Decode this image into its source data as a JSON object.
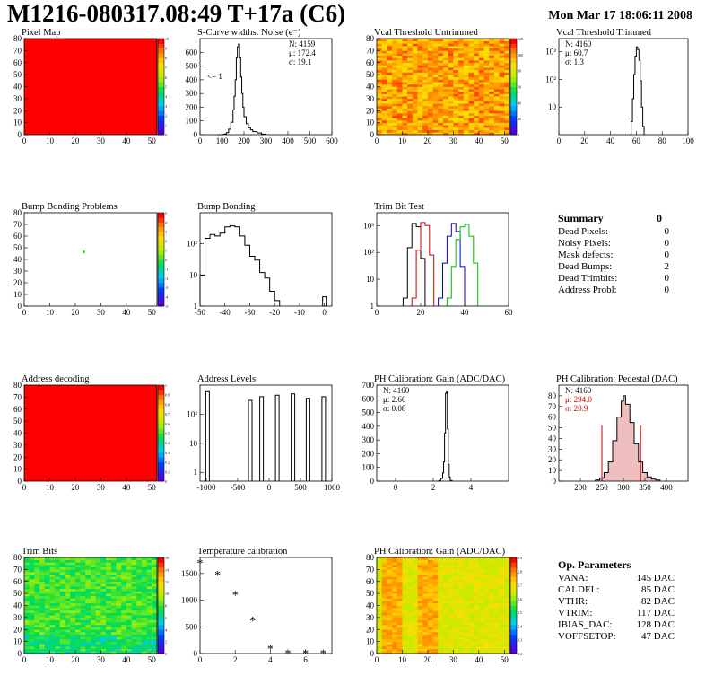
{
  "header": {
    "title": "M1216-080317.08:49 T+17a (C6)",
    "date": "Mon Mar 17 18:06:11 2008"
  },
  "colors": {
    "red_fill": "#ff0000",
    "hist_line": "#000000",
    "trim_red": "#d00000",
    "trim_blue": "#0000d0",
    "trim_green": "#00c000",
    "pedestal_fill": "#e08080"
  },
  "chart_data": [
    {
      "id": "pixel_map",
      "type": "heatmap",
      "title": "Pixel Map",
      "xlim": [
        0,
        52
      ],
      "ylim": [
        0,
        80
      ],
      "xticks": [
        "0",
        "10",
        "20",
        "30",
        "40",
        "50"
      ],
      "yticks": [
        "0",
        "10",
        "20",
        "30",
        "40",
        "50",
        "60",
        "70",
        "80"
      ],
      "zticks": [
        "0",
        "1",
        "2",
        "3",
        "4",
        "5",
        "6",
        "7",
        "8",
        "9",
        "10"
      ],
      "fill": "uniform-max"
    },
    {
      "id": "scurve",
      "type": "line",
      "title": "S-Curve widths: Noise (e⁻)",
      "xlim": [
        0,
        600
      ],
      "ylim": [
        0,
        700
      ],
      "xticks": [
        "0",
        "100",
        "200",
        "300",
        "400",
        "500",
        "600"
      ],
      "yticks": [
        "0",
        "100",
        "200",
        "300",
        "400",
        "500",
        "600"
      ],
      "stats": [
        "N: 4159",
        "μ: 172.4",
        "σ: 19.1"
      ],
      "annotation": "<= 1",
      "x": [
        80,
        100,
        110,
        120,
        130,
        140,
        150,
        155,
        160,
        165,
        170,
        175,
        180,
        185,
        190,
        195,
        200,
        210,
        220,
        230,
        240,
        260,
        280,
        300
      ],
      "y": [
        0,
        2,
        5,
        15,
        40,
        90,
        180,
        280,
        400,
        560,
        640,
        660,
        560,
        420,
        300,
        200,
        130,
        80,
        50,
        35,
        22,
        12,
        4,
        0
      ]
    },
    {
      "id": "vcal_untrimmed",
      "type": "heatmap",
      "title": "Vcal Threshold Untrimmed",
      "xlim": [
        0,
        52
      ],
      "ylim": [
        0,
        80
      ],
      "xticks": [
        "0",
        "10",
        "20",
        "30",
        "40",
        "50"
      ],
      "yticks": [
        "0",
        "10",
        "20",
        "30",
        "40",
        "50",
        "60",
        "70",
        "80"
      ],
      "zticks": [
        "0",
        "20",
        "40",
        "60",
        "80",
        "100",
        "120"
      ],
      "fill": "noisy-orange"
    },
    {
      "id": "vcal_trimmed",
      "type": "line",
      "title": "Vcal Threshold Trimmed",
      "xlim": [
        0,
        100
      ],
      "ylog": true,
      "ylim": [
        1,
        3000
      ],
      "xticks": [
        "0",
        "20",
        "40",
        "60",
        "80",
        "100"
      ],
      "yticks": [
        "10",
        "10²",
        "10³"
      ],
      "stats": [
        "N: 4160",
        "μ: 60.7",
        "σ:  1.3"
      ],
      "x": [
        55,
        56,
        57,
        58,
        59,
        60,
        61,
        62,
        63,
        64,
        65,
        66
      ],
      "y": [
        1,
        3,
        20,
        150,
        700,
        1500,
        1200,
        500,
        90,
        10,
        2,
        1
      ]
    },
    {
      "id": "bump_problems",
      "type": "heatmap",
      "title": "Bump Bonding Problems",
      "xlim": [
        0,
        52
      ],
      "ylim": [
        0,
        80
      ],
      "xticks": [
        "0",
        "10",
        "20",
        "30",
        "40",
        "50"
      ],
      "yticks": [
        "0",
        "10",
        "20",
        "30",
        "40",
        "50",
        "60",
        "70",
        "80"
      ],
      "zticks": [
        "-5",
        "-4",
        "-3",
        "-2",
        "-1",
        "0",
        "1",
        "2",
        "3",
        "4",
        "5"
      ],
      "fill": "single-point",
      "point": [
        23,
        46
      ]
    },
    {
      "id": "bump_bonding",
      "type": "line",
      "title": "Bump Bonding",
      "xlim": [
        -50,
        3
      ],
      "ylog": true,
      "ylim": [
        1,
        1000
      ],
      "xticks": [
        "-50",
        "-40",
        "-30",
        "-20",
        "-10",
        "0"
      ],
      "yticks": [
        "1",
        "10",
        "10²"
      ],
      "x": [
        -50,
        -48,
        -46,
        -44,
        -42,
        -40,
        -38,
        -36,
        -34,
        -32,
        -30,
        -28,
        -26,
        -24,
        -22,
        -20,
        -18
      ],
      "y": [
        10,
        150,
        200,
        180,
        220,
        350,
        380,
        350,
        180,
        90,
        40,
        30,
        12,
        8,
        3,
        1.5,
        1
      ],
      "extra_bin": [
        0,
        2
      ]
    },
    {
      "id": "trim_bit_test",
      "type": "line",
      "title": "Trim Bit Test",
      "xlim": [
        0,
        60
      ],
      "ylog": true,
      "ylim": [
        1,
        3000
      ],
      "xticks": [
        "0",
        "20",
        "40",
        "60"
      ],
      "yticks": [
        "1",
        "10",
        "10²",
        "10³"
      ],
      "series": [
        {
          "color": "#000000",
          "x": [
            12,
            14,
            16,
            18,
            20,
            22
          ],
          "y": [
            2,
            150,
            1200,
            900,
            60,
            2
          ]
        },
        {
          "color": "#d00000",
          "x": [
            16,
            18,
            20,
            22,
            24,
            26
          ],
          "y": [
            2,
            120,
            1300,
            1000,
            80,
            2
          ]
        },
        {
          "color": "#0000d0",
          "x": [
            28,
            30,
            32,
            34,
            36,
            38,
            40
          ],
          "y": [
            2,
            40,
            400,
            1200,
            600,
            30,
            2
          ]
        },
        {
          "color": "#00c000",
          "x": [
            32,
            34,
            36,
            38,
            40,
            42,
            44,
            46
          ],
          "y": [
            2,
            30,
            300,
            900,
            1100,
            400,
            40,
            2
          ]
        }
      ]
    },
    {
      "id": "address_decoding",
      "type": "heatmap",
      "title": "Address decoding",
      "xlim": [
        0,
        52
      ],
      "ylim": [
        0,
        80
      ],
      "xticks": [
        "0",
        "10",
        "20",
        "30",
        "40",
        "50"
      ],
      "yticks": [
        "0",
        "10",
        "20",
        "30",
        "40",
        "50",
        "60",
        "70",
        "80"
      ],
      "zticks": [
        "0",
        "0.1",
        "0.2",
        "0.3",
        "0.4",
        "0.5",
        "0.6",
        "0.7",
        "0.8",
        "0.9",
        "1"
      ],
      "fill": "uniform-max"
    },
    {
      "id": "address_levels",
      "type": "line",
      "title": "Address Levels",
      "xlim": [
        -1100,
        1000
      ],
      "ylog": true,
      "ylim": [
        0.5,
        1000
      ],
      "xticks": [
        "-1000",
        "-500",
        "0",
        "500",
        "1000"
      ],
      "yticks": [
        "1",
        "10",
        "10²"
      ],
      "peaks": [
        [
          -980,
          600
        ],
        [
          -300,
          300
        ],
        [
          -120,
          400
        ],
        [
          130,
          450
        ],
        [
          380,
          500
        ],
        [
          620,
          350
        ],
        [
          870,
          400
        ]
      ]
    },
    {
      "id": "ph_gain",
      "type": "line",
      "title": "PH Calibration: Gain (ADC/DAC)",
      "xlim": [
        -1,
        6
      ],
      "ylim": [
        0,
        700
      ],
      "xticks": [
        "0",
        "2",
        "4"
      ],
      "yticks": [
        "0",
        "100",
        "200",
        "300",
        "400",
        "500",
        "600",
        "700"
      ],
      "stats": [
        "N: 4160",
        "μ: 2.66",
        "σ: 0.08"
      ],
      "x": [
        2.2,
        2.3,
        2.4,
        2.5,
        2.55,
        2.6,
        2.65,
        2.7,
        2.75,
        2.8,
        2.85,
        2.9,
        3.0
      ],
      "y": [
        0,
        5,
        20,
        60,
        140,
        350,
        640,
        650,
        380,
        120,
        30,
        5,
        0
      ]
    },
    {
      "id": "ph_pedestal",
      "type": "line",
      "title": "PH Calibration: Pedestal (DAC)",
      "xlim": [
        150,
        450
      ],
      "ylim": [
        0,
        90
      ],
      "xticks": [
        "200",
        "250",
        "300",
        "350",
        "400"
      ],
      "yticks": [
        "0",
        "10",
        "20",
        "30",
        "40",
        "50",
        "60",
        "70",
        "80"
      ],
      "stats": [
        "N: 4160",
        "μ: 294.0",
        "σ: 20.9"
      ],
      "x": [
        235,
        245,
        255,
        265,
        275,
        285,
        295,
        300,
        305,
        315,
        325,
        335,
        345,
        355,
        365,
        375,
        385
      ],
      "y": [
        1,
        3,
        8,
        18,
        38,
        60,
        75,
        80,
        72,
        55,
        35,
        18,
        8,
        4,
        2,
        1,
        0
      ],
      "cuts": [
        250,
        340
      ]
    },
    {
      "id": "trim_bits",
      "type": "heatmap",
      "title": "Trim Bits",
      "xlim": [
        0,
        52
      ],
      "ylim": [
        0,
        80
      ],
      "xticks": [
        "0",
        "10",
        "20",
        "30",
        "40",
        "50"
      ],
      "yticks": [
        "0",
        "10",
        "20",
        "30",
        "40",
        "50",
        "60",
        "70",
        "80"
      ],
      "zticks": [
        "0",
        "2",
        "4",
        "6",
        "8",
        "10",
        "12",
        "14",
        "16"
      ],
      "fill": "noisy-green"
    },
    {
      "id": "temperature",
      "type": "scatter",
      "title": "Temperature calibration",
      "xlim": [
        0,
        7.5
      ],
      "ylim": [
        0,
        1800
      ],
      "xticks": [
        "0",
        "2",
        "4",
        "6"
      ],
      "yticks": [
        "0",
        "500",
        "1000",
        "1500"
      ],
      "x": [
        0,
        1,
        2,
        3,
        4,
        5,
        6,
        7
      ],
      "y": [
        1700,
        1480,
        1100,
        620,
        90,
        10,
        5,
        5
      ]
    },
    {
      "id": "ph_gain_map",
      "type": "heatmap",
      "title": "PH Calibration: Gain (ADC/DAC)",
      "xlim": [
        0,
        52
      ],
      "ylim": [
        0,
        80
      ],
      "xticks": [
        "0",
        "10",
        "20",
        "30",
        "40",
        "50"
      ],
      "yticks": [
        "0",
        "10",
        "20",
        "30",
        "40",
        "50",
        "60",
        "70",
        "80"
      ],
      "zticks": [
        "2.2",
        "2.3",
        "2.4",
        "2.5",
        "2.6",
        "2.7",
        "2.8",
        "2.9"
      ],
      "fill": "noisy-yellow"
    }
  ],
  "summary": {
    "title": "Summary",
    "value": "0",
    "rows": [
      {
        "label": "Dead Pixels:",
        "value": "0"
      },
      {
        "label": "Noisy Pixels:",
        "value": "0"
      },
      {
        "label": "Mask defects:",
        "value": "0"
      },
      {
        "label": "Dead Bumps:",
        "value": "2"
      },
      {
        "label": "Dead Trimbits:",
        "value": "0"
      },
      {
        "label": "Address Probl:",
        "value": "0"
      }
    ]
  },
  "op_params": {
    "title": "Op. Parameters",
    "rows": [
      {
        "label": "VANA:",
        "value": "145 DAC"
      },
      {
        "label": "CALDEL:",
        "value": "85 DAC"
      },
      {
        "label": "VTHR:",
        "value": "82 DAC"
      },
      {
        "label": "VTRIM:",
        "value": "117 DAC"
      },
      {
        "label": "IBIAS_DAC:",
        "value": "128 DAC"
      },
      {
        "label": "VOFFSETOP:",
        "value": "47 DAC"
      }
    ]
  }
}
